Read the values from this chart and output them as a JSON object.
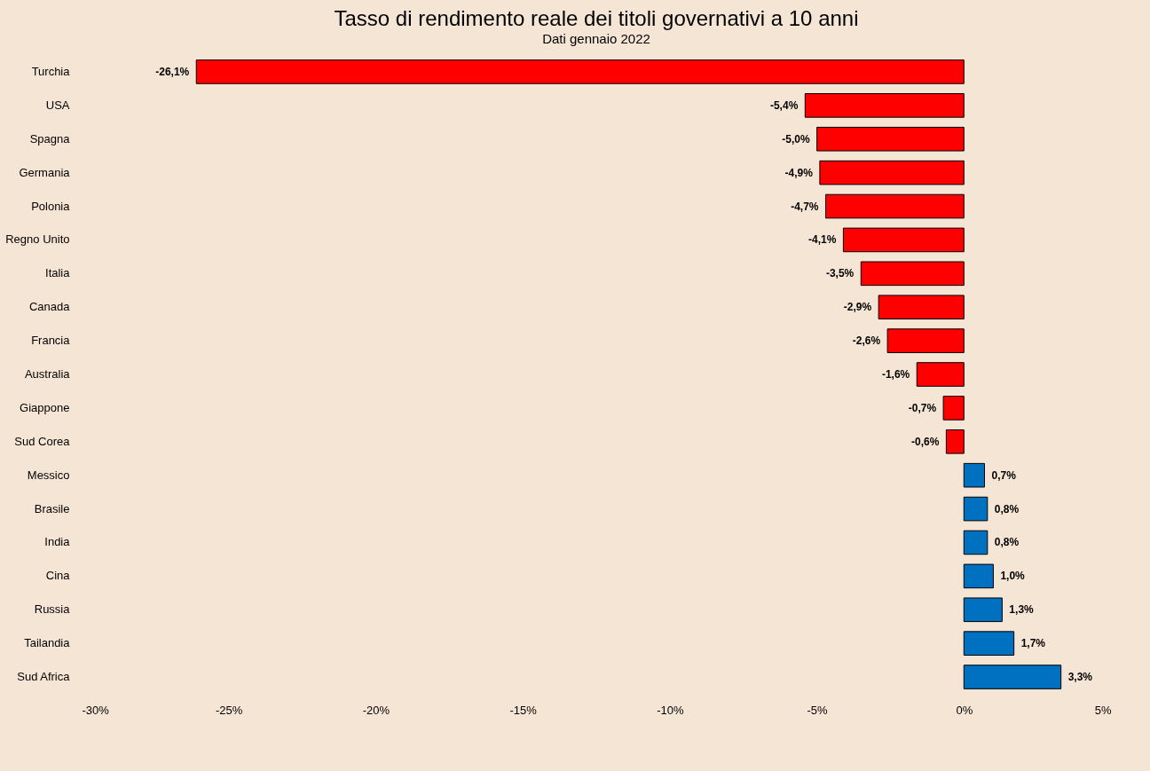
{
  "chart_data": {
    "type": "bar",
    "orientation": "horizontal",
    "title": "Tasso di rendimento reale dei titoli governativi a 10 anni",
    "subtitle": "Dati gennaio 2022",
    "categories": [
      "Turchia",
      "USA",
      "Spagna",
      "Germania",
      "Polonia",
      "Regno Unito",
      "Italia",
      "Canada",
      "Francia",
      "Australia",
      "Giappone",
      "Sud Corea",
      "Messico",
      "Brasile",
      "India",
      "Cina",
      "Russia",
      "Tailandia",
      "Sud Africa"
    ],
    "values": [
      -26.1,
      -5.4,
      -5.0,
      -4.9,
      -4.7,
      -4.1,
      -3.5,
      -2.9,
      -2.6,
      -1.6,
      -0.7,
      -0.6,
      0.7,
      0.8,
      0.8,
      1.0,
      1.3,
      1.7,
      3.3
    ],
    "value_labels": [
      "-26,1%",
      "-5,4%",
      "-5,0%",
      "-4,9%",
      "-4,7%",
      "-4,1%",
      "-3,5%",
      "-2,9%",
      "-2,6%",
      "-1,6%",
      "-0,7%",
      "-0,6%",
      "0,7%",
      "0,8%",
      "0,8%",
      "1,0%",
      "1,3%",
      "1,7%",
      "3,3%"
    ],
    "colors": [
      "#ff0000",
      "#ff0000",
      "#ff0000",
      "#ff0000",
      "#ff0000",
      "#ff0000",
      "#ff0000",
      "#ff0000",
      "#ff0000",
      "#ff0000",
      "#ff0000",
      "#ff0000",
      "#0070c0",
      "#0070c0",
      "#0070c0",
      "#0070c0",
      "#0070c0",
      "#0070c0",
      "#0070c0"
    ],
    "xlim": [
      -30,
      5
    ],
    "xticks": [
      {
        "value": -30,
        "label": "-30%"
      },
      {
        "value": -25,
        "label": "-25%"
      },
      {
        "value": -20,
        "label": "-20%"
      },
      {
        "value": -15,
        "label": "-15%"
      },
      {
        "value": -10,
        "label": "-10%"
      },
      {
        "value": -5,
        "label": "-5%"
      },
      {
        "value": 0,
        "label": "0%"
      },
      {
        "value": 5,
        "label": "5%"
      }
    ]
  }
}
